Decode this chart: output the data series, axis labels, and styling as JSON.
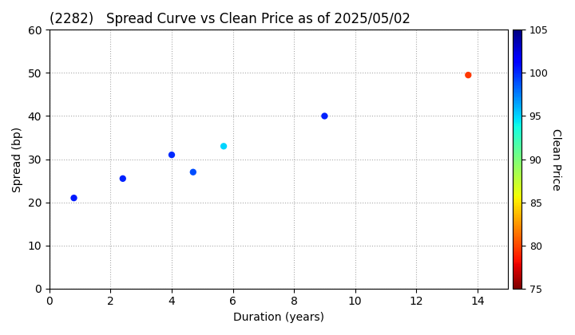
{
  "title": "(2282)   Spread Curve vs Clean Price as of 2025/05/02",
  "xlabel": "Duration (years)",
  "ylabel": "Spread (bp)",
  "points": [
    {
      "duration": 0.8,
      "spread": 21,
      "clean_price": 100.5
    },
    {
      "duration": 2.4,
      "spread": 25.5,
      "clean_price": 100.2
    },
    {
      "duration": 4.0,
      "spread": 31,
      "clean_price": 100.0
    },
    {
      "duration": 4.7,
      "spread": 27,
      "clean_price": 99.0
    },
    {
      "duration": 5.7,
      "spread": 33,
      "clean_price": 95.0
    },
    {
      "duration": 9.0,
      "spread": 40,
      "clean_price": 100.3
    },
    {
      "duration": 13.7,
      "spread": 49.5,
      "clean_price": 79.5
    }
  ],
  "xlim": [
    0,
    15
  ],
  "ylim": [
    0,
    60
  ],
  "xticks": [
    0,
    2,
    4,
    6,
    8,
    10,
    12,
    14
  ],
  "yticks": [
    0,
    10,
    20,
    30,
    40,
    50,
    60
  ],
  "cbar_min": 75,
  "cbar_max": 105,
  "cbar_ticks": [
    75,
    80,
    85,
    90,
    95,
    100,
    105
  ],
  "cbar_label": "Clean Price",
  "colormap": "jet_r",
  "background_color": "#ffffff",
  "grid_color": "#aaaaaa",
  "marker_size": 6,
  "title_fontsize": 12,
  "figsize": [
    7.2,
    4.2
  ],
  "dpi": 100
}
